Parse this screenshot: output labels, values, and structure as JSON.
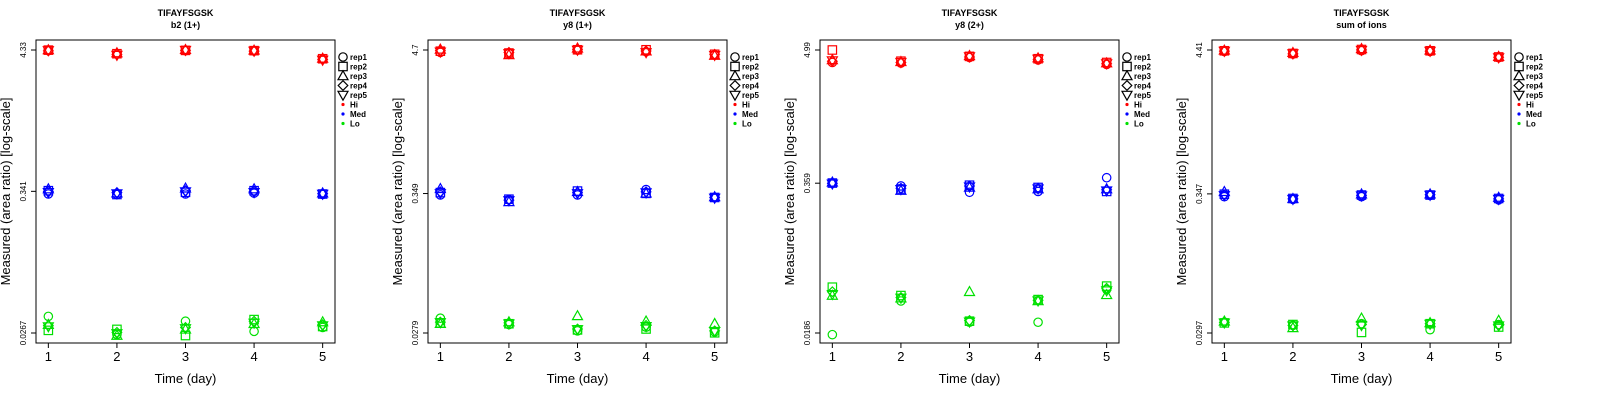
{
  "legend": {
    "shapes": [
      "rep1",
      "rep2",
      "rep3",
      "rep4",
      "rep5"
    ],
    "colors": [
      "Hi",
      "Med",
      "Lo"
    ]
  },
  "colors": {
    "Hi": "#ff0000",
    "Med": "#0000ff",
    "Lo": "#00e000"
  },
  "chart_data": [
    {
      "type": "scatter",
      "title": "TIFAYFSGSK",
      "subtitle": "b2 (1+)",
      "xlabel": "Time (day)",
      "ylabel": "Measured (area ratio) [log-scale]",
      "x": [
        1,
        2,
        3,
        4,
        5
      ],
      "yscale": "log",
      "ylim": [
        0.0267,
        4.33
      ],
      "yticks": [
        "0.0267",
        "0.341",
        "4.33"
      ],
      "series": [
        {
          "name": "rep1",
          "level": "Hi",
          "values": [
            4.28,
            4.02,
            4.27,
            4.25,
            3.68
          ]
        },
        {
          "name": "rep2",
          "level": "Hi",
          "values": [
            4.32,
            4.05,
            4.3,
            4.28,
            3.7
          ]
        },
        {
          "name": "rep3",
          "level": "Hi",
          "values": [
            4.33,
            4.1,
            4.35,
            4.3,
            3.72
          ]
        },
        {
          "name": "rep4",
          "level": "Hi",
          "values": [
            4.26,
            4.0,
            4.3,
            4.24,
            3.65
          ]
        },
        {
          "name": "rep5",
          "level": "Hi",
          "values": [
            4.3,
            3.95,
            4.32,
            4.26,
            3.62
          ]
        },
        {
          "name": "rep1",
          "level": "Med",
          "values": [
            0.325,
            0.322,
            0.325,
            0.33,
            0.323
          ]
        },
        {
          "name": "rep2",
          "level": "Med",
          "values": [
            0.345,
            0.322,
            0.335,
            0.345,
            0.325
          ]
        },
        {
          "name": "rep3",
          "level": "Med",
          "values": [
            0.355,
            0.33,
            0.36,
            0.355,
            0.33
          ]
        },
        {
          "name": "rep4",
          "level": "Med",
          "values": [
            0.34,
            0.333,
            0.345,
            0.34,
            0.327
          ]
        },
        {
          "name": "rep5",
          "level": "Med",
          "values": [
            0.335,
            0.328,
            0.34,
            0.335,
            0.325
          ]
        },
        {
          "name": "rep1",
          "level": "Lo",
          "values": [
            0.036,
            0.026,
            0.033,
            0.0275,
            0.0295
          ]
        },
        {
          "name": "rep2",
          "level": "Lo",
          "values": [
            0.028,
            0.0285,
            0.0255,
            0.034,
            0.03
          ]
        },
        {
          "name": "rep3",
          "level": "Lo",
          "values": [
            0.031,
            0.0255,
            0.0285,
            0.0315,
            0.0325
          ]
        },
        {
          "name": "rep4",
          "level": "Lo",
          "values": [
            0.0305,
            0.027,
            0.0295,
            0.033,
            0.031
          ]
        },
        {
          "name": "rep5",
          "level": "Lo",
          "values": [
            0.03,
            0.0265,
            0.029,
            0.032,
            0.0305
          ]
        }
      ]
    },
    {
      "type": "scatter",
      "title": "TIFAYFSGSK",
      "subtitle": "y8 (1+)",
      "xlabel": "Time (day)",
      "ylabel": "Measured (area ratio) [log-scale]",
      "x": [
        1,
        2,
        3,
        4,
        5
      ],
      "yscale": "log",
      "ylim": [
        0.0279,
        4.7
      ],
      "yticks": [
        "0.0279",
        "0.349",
        "4.7"
      ],
      "series": [
        {
          "name": "rep1",
          "level": "Hi",
          "values": [
            4.5,
            4.4,
            4.68,
            4.55,
            4.3
          ]
        },
        {
          "name": "rep2",
          "level": "Hi",
          "values": [
            4.6,
            4.45,
            4.72,
            4.72,
            4.35
          ]
        },
        {
          "name": "rep3",
          "level": "Hi",
          "values": [
            4.75,
            4.3,
            4.85,
            4.6,
            4.25
          ]
        },
        {
          "name": "rep4",
          "level": "Hi",
          "values": [
            4.65,
            4.5,
            4.75,
            4.62,
            4.35
          ]
        },
        {
          "name": "rep5",
          "level": "Hi",
          "values": [
            4.55,
            4.42,
            4.7,
            4.5,
            4.28
          ]
        },
        {
          "name": "rep1",
          "level": "Med",
          "values": [
            0.34,
            0.312,
            0.34,
            0.375,
            0.325
          ]
        },
        {
          "name": "rep2",
          "level": "Med",
          "values": [
            0.355,
            0.315,
            0.365,
            0.35,
            0.325
          ]
        },
        {
          "name": "rep3",
          "level": "Med",
          "values": [
            0.38,
            0.3,
            0.36,
            0.35,
            0.328
          ]
        },
        {
          "name": "rep4",
          "level": "Med",
          "values": [
            0.36,
            0.31,
            0.355,
            0.36,
            0.325
          ]
        },
        {
          "name": "rep5",
          "level": "Med",
          "values": [
            0.35,
            0.308,
            0.35,
            0.355,
            0.322
          ]
        },
        {
          "name": "rep1",
          "level": "Lo",
          "values": [
            0.0365,
            0.0325,
            0.029,
            0.031,
            0.0285
          ]
        },
        {
          "name": "rep2",
          "level": "Lo",
          "values": [
            0.0335,
            0.033,
            0.0295,
            0.03,
            0.028
          ]
        },
        {
          "name": "rep3",
          "level": "Lo",
          "values": [
            0.033,
            0.034,
            0.038,
            0.0345,
            0.033
          ]
        },
        {
          "name": "rep4",
          "level": "Lo",
          "values": [
            0.034,
            0.0335,
            0.03,
            0.032,
            0.029
          ]
        },
        {
          "name": "rep5",
          "level": "Lo",
          "values": [
            0.0338,
            0.033,
            0.0298,
            0.0315,
            0.0288
          ]
        }
      ]
    },
    {
      "type": "scatter",
      "title": "TIFAYFSGSK",
      "subtitle": "y8 (2+)",
      "xlabel": "Time (day)",
      "ylabel": "Measured (area ratio) [log-scale]",
      "x": [
        1,
        2,
        3,
        4,
        5
      ],
      "yscale": "log",
      "ylim": [
        0.0186,
        4.99
      ],
      "yticks": [
        "0.0186",
        "0.359",
        "4.99"
      ],
      "series": [
        {
          "name": "rep1",
          "level": "Hi",
          "values": [
            3.9,
            3.85,
            4.3,
            4.1,
            3.75
          ]
        },
        {
          "name": "rep2",
          "level": "Hi",
          "values": [
            4.99,
            4.0,
            4.4,
            4.2,
            3.9
          ]
        },
        {
          "name": "rep3",
          "level": "Hi",
          "values": [
            4.1,
            3.95,
            4.45,
            4.25,
            3.85
          ]
        },
        {
          "name": "rep4",
          "level": "Hi",
          "values": [
            4.0,
            3.9,
            4.35,
            4.15,
            3.8
          ]
        },
        {
          "name": "rep5",
          "level": "Hi",
          "values": [
            4.05,
            3.92,
            4.38,
            4.18,
            3.82
          ]
        },
        {
          "name": "rep1",
          "level": "Med",
          "values": [
            0.36,
            0.34,
            0.3,
            0.305,
            0.4
          ]
        },
        {
          "name": "rep2",
          "level": "Med",
          "values": [
            0.36,
            0.32,
            0.345,
            0.33,
            0.305
          ]
        },
        {
          "name": "rep3",
          "level": "Med",
          "values": [
            0.365,
            0.31,
            0.33,
            0.32,
            0.32
          ]
        },
        {
          "name": "rep4",
          "level": "Med",
          "values": [
            0.358,
            0.325,
            0.34,
            0.325,
            0.315
          ]
        },
        {
          "name": "rep5",
          "level": "Med",
          "values": [
            0.355,
            0.318,
            0.335,
            0.322,
            0.31
          ]
        },
        {
          "name": "rep1",
          "level": "Lo",
          "values": [
            0.018,
            0.035,
            0.023,
            0.023,
            0.044
          ]
        },
        {
          "name": "rep2",
          "level": "Lo",
          "values": [
            0.046,
            0.039,
            0.0235,
            0.036,
            0.047
          ]
        },
        {
          "name": "rep3",
          "level": "Lo",
          "values": [
            0.039,
            0.037,
            0.042,
            0.035,
            0.0395
          ]
        },
        {
          "name": "rep4",
          "level": "Lo",
          "values": [
            0.042,
            0.0375,
            0.0238,
            0.0355,
            0.045
          ]
        },
        {
          "name": "rep5",
          "level": "Lo",
          "values": [
            0.04,
            0.0372,
            0.0232,
            0.0352,
            0.043
          ]
        }
      ]
    },
    {
      "type": "scatter",
      "title": "TIFAYFSGSK",
      "subtitle": "sum of ions",
      "xlabel": "Time (day)",
      "ylabel": "Measured (area ratio) [log-scale]",
      "x": [
        1,
        2,
        3,
        4,
        5
      ],
      "yscale": "log",
      "ylim": [
        0.0297,
        4.41
      ],
      "yticks": [
        "0.0297",
        "0.347",
        "4.41"
      ],
      "series": [
        {
          "name": "rep1",
          "level": "Hi",
          "values": [
            4.3,
            4.1,
            4.35,
            4.3,
            3.85
          ]
        },
        {
          "name": "rep2",
          "level": "Hi",
          "values": [
            4.35,
            4.15,
            4.45,
            4.35,
            3.9
          ]
        },
        {
          "name": "rep3",
          "level": "Hi",
          "values": [
            4.38,
            4.2,
            4.5,
            4.38,
            3.92
          ]
        },
        {
          "name": "rep4",
          "level": "Hi",
          "values": [
            4.32,
            4.12,
            4.42,
            4.32,
            3.88
          ]
        },
        {
          "name": "rep5",
          "level": "Hi",
          "values": [
            4.33,
            4.14,
            4.4,
            4.33,
            3.86
          ]
        },
        {
          "name": "rep1",
          "level": "Med",
          "values": [
            0.33,
            0.315,
            0.33,
            0.338,
            0.312
          ]
        },
        {
          "name": "rep2",
          "level": "Med",
          "values": [
            0.345,
            0.32,
            0.34,
            0.34,
            0.32
          ]
        },
        {
          "name": "rep3",
          "level": "Med",
          "values": [
            0.36,
            0.318,
            0.345,
            0.345,
            0.325
          ]
        },
        {
          "name": "rep4",
          "level": "Med",
          "values": [
            0.34,
            0.318,
            0.338,
            0.342,
            0.318
          ]
        },
        {
          "name": "rep5",
          "level": "Med",
          "values": [
            0.338,
            0.316,
            0.336,
            0.34,
            0.316
          ]
        },
        {
          "name": "rep1",
          "level": "Lo",
          "values": [
            0.036,
            0.034,
            0.035,
            0.0315,
            0.0345
          ]
        },
        {
          "name": "rep2",
          "level": "Lo",
          "values": [
            0.0355,
            0.0345,
            0.03,
            0.035,
            0.033
          ]
        },
        {
          "name": "rep3",
          "level": "Lo",
          "values": [
            0.0365,
            0.0325,
            0.0385,
            0.0355,
            0.037
          ]
        },
        {
          "name": "rep4",
          "level": "Lo",
          "values": [
            0.0358,
            0.034,
            0.0345,
            0.035,
            0.034
          ]
        },
        {
          "name": "rep5",
          "level": "Lo",
          "values": [
            0.0356,
            0.0338,
            0.034,
            0.0348,
            0.0338
          ]
        }
      ]
    }
  ]
}
